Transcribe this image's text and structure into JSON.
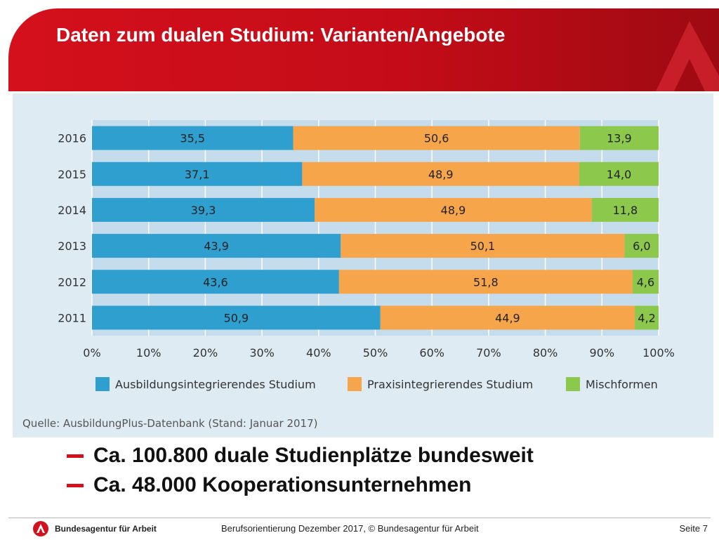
{
  "header": {
    "title": "Daten zum dualen Studium: Varianten/Angebote"
  },
  "chart_data": {
    "type": "bar",
    "orientation": "horizontal",
    "stacked": true,
    "categories": [
      "2016",
      "2015",
      "2014",
      "2013",
      "2012",
      "2011"
    ],
    "series": [
      {
        "name": "Ausbildungsintegrierendes Studium",
        "color": "#2e9fcf",
        "values": [
          35.5,
          37.1,
          39.3,
          43.9,
          43.6,
          50.9
        ],
        "labels": [
          "35,5",
          "37,1",
          "39,3",
          "43,9",
          "43,6",
          "50,9"
        ]
      },
      {
        "name": "Praxisintegrierendes Studium",
        "color": "#f7a54b",
        "values": [
          50.6,
          48.9,
          48.9,
          50.1,
          51.8,
          44.9
        ],
        "labels": [
          "50,6",
          "48,9",
          "48,9",
          "50,1",
          "51,8",
          "44,9"
        ]
      },
      {
        "name": "Mischformen",
        "color": "#8cc84b",
        "values": [
          13.9,
          14.0,
          11.8,
          6.0,
          4.6,
          4.2
        ],
        "labels": [
          "13,9",
          "14,0",
          "11,8",
          "6,0",
          "4,6",
          "4,2"
        ]
      }
    ],
    "xlim": [
      0,
      100
    ],
    "xticks": [
      "0%",
      "10%",
      "20%",
      "30%",
      "40%",
      "50%",
      "60%",
      "70%",
      "80%",
      "90%",
      "100%"
    ],
    "grid": true,
    "legend_position": "bottom",
    "source": "Quelle: AusbildungPlus-Datenbank (Stand: Januar 2017)"
  },
  "bullets": [
    "Ca. 100.800 duale Studienplätze bundesweit",
    "Ca. 48.000 Kooperationsunternehmen"
  ],
  "footer": {
    "brand": "Bundesagentur für Arbeit",
    "center": "Berufsorientierung Dezember 2017, © Bundesagentur für Arbeit",
    "page": "Seite 7"
  },
  "colors": {
    "brand_red": "#d4101c",
    "panel_bg": "#deebf3"
  }
}
